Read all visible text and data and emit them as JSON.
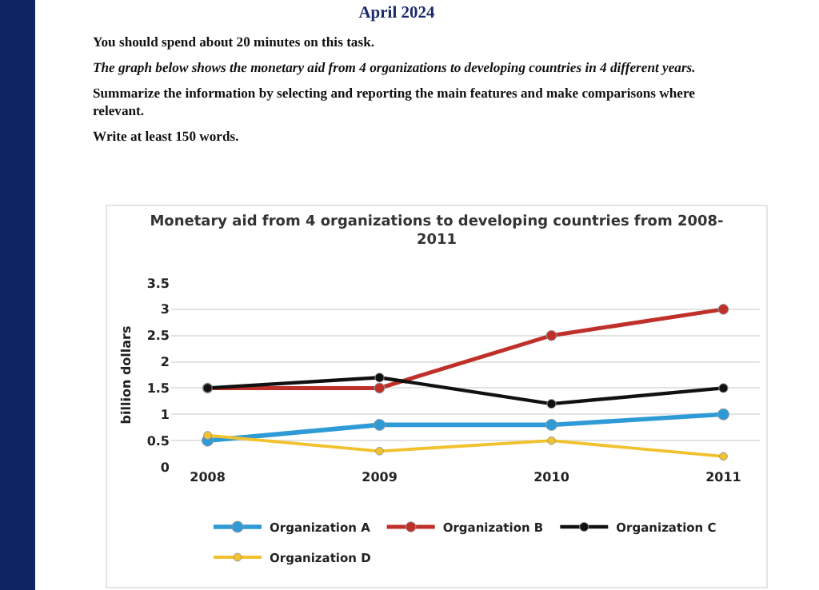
{
  "chart_data": {
    "type": "line",
    "title": "Monetary aid from 4 organizations to developing countries from 2008-2011",
    "ylabel": "billion dollars",
    "annotations": [
      "April 2024",
      "You should spend about 20 minutes on this task.",
      "The graph below shows the monetary aid from 4 organizations to developing countries in 4 different years.",
      "Summarize the information by selecting and reporting the main features and make comparisons where relevant.",
      "Write at least 150 words."
    ],
    "categories": [
      "2008",
      "2009",
      "2010",
      "2011"
    ],
    "series": [
      {
        "name": "Organization A",
        "color": "#2e9bd6",
        "values": [
          0.5,
          0.8,
          0.8,
          1.0
        ]
      },
      {
        "name": "Organization B",
        "color": "#c0302a",
        "values": [
          1.5,
          1.5,
          2.5,
          3
        ]
      },
      {
        "name": "Organization C",
        "color": "#111111",
        "values": [
          1.5,
          1.7,
          1.2,
          1.5
        ]
      },
      {
        "name": "Organization D",
        "color": "#f2c12e",
        "values": [
          0.6,
          0.3,
          0.5,
          0.2
        ]
      }
    ],
    "ylim": [
      0,
      3.5
    ],
    "yticks": [
      0,
      0.5,
      1,
      1.5,
      2,
      2.5,
      3,
      3.5
    ],
    "grid": "y",
    "legend": "bottom",
    "marker": "circle",
    "line_style": "solid"
  }
}
